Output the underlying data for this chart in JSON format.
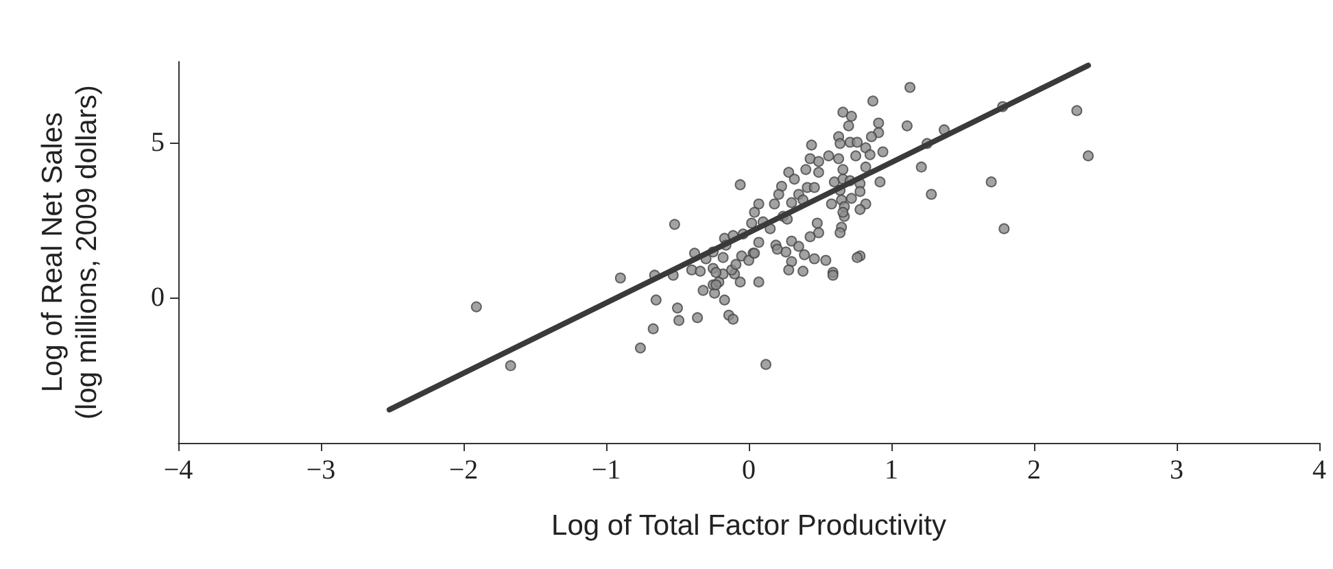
{
  "chart_data": {
    "type": "scatter",
    "xlabel": "Log of Total Factor Productivity",
    "ylabel": "Log of Real Net Sales\n(log millions, 2009 dollars)",
    "xlim": [
      -4,
      4
    ],
    "xticks": [
      {
        "value": -4,
        "label": "−4"
      },
      {
        "value": -3,
        "label": "−3"
      },
      {
        "value": -2,
        "label": "−2"
      },
      {
        "value": -1,
        "label": "−1"
      },
      0,
      1,
      2,
      3,
      4
    ],
    "ylim": [
      -4.7,
      7.6
    ],
    "yticks": [
      0,
      5
    ],
    "marker": "circle",
    "series": [
      {
        "color": "#8c8c8c",
        "x": [
          -1.91,
          -1.67,
          -0.9,
          -0.52,
          -0.65,
          -0.67,
          -0.76,
          -0.66,
          -0.53,
          -0.4,
          -0.38,
          -0.34,
          -0.25,
          -0.24,
          -0.36,
          -0.49,
          -0.5,
          -0.17,
          -0.14,
          -0.11,
          -0.32,
          -0.25,
          1.13,
          0.87,
          0.66,
          0.72,
          0.7,
          0.91,
          0.91,
          0.86,
          1.11,
          1.37,
          1.25,
          1.78,
          0.63,
          0.64,
          0.71,
          0.76,
          0.82,
          0.85,
          0.94,
          0.75,
          0.44,
          0.43,
          0.49,
          0.56,
          0.63,
          0.4,
          0.49,
          0.66,
          0.82,
          1.21,
          0.28,
          0.32,
          0.6,
          0.66,
          0.71,
          0.78,
          0.92,
          0.23,
          -0.06,
          0.41,
          0.46,
          0.21,
          0.35,
          0.64,
          0.78,
          1.28,
          1.7,
          0.07,
          0.18,
          0.3,
          0.38,
          0.58,
          0.65,
          0.72,
          0.82,
          0.04,
          0.24,
          0.67,
          0.67,
          0.78,
          0.02,
          0.1,
          0.15,
          0.27,
          0.48,
          0.49,
          0.65,
          0.64,
          0.43,
          0.19,
          0.3,
          0.35,
          0.26,
          0.39,
          0.46,
          0.54,
          0.78,
          1.79,
          -0.17,
          -0.11,
          -0.04,
          0.07,
          -0.16,
          -0.25,
          -0.3,
          -0.05,
          0.03,
          0.38,
          0.59,
          2.3,
          2.38,
          0.12,
          0.07,
          -0.06,
          -0.21,
          -0.1,
          -0.18,
          -0.12,
          -0.09,
          0.0,
          0.04,
          0.2,
          0.3,
          0.28,
          0.59,
          0.76,
          0.66,
          -0.18,
          -0.23,
          -0.23
        ],
        "values": [
          -0.31,
          -2.21,
          0.62,
          2.35,
          -0.09,
          -1.02,
          -1.64,
          0.71,
          0.71,
          0.88,
          1.42,
          0.84,
          0.93,
          0.13,
          -0.66,
          -0.75,
          -0.35,
          -0.09,
          -0.58,
          -0.71,
          0.22,
          0.4,
          6.77,
          6.33,
          5.97,
          5.84,
          5.53,
          5.62,
          5.31,
          5.18,
          5.53,
          5.4,
          4.96,
          6.15,
          5.18,
          4.96,
          5.0,
          5.0,
          4.82,
          4.6,
          4.69,
          4.56,
          4.91,
          4.47,
          4.38,
          4.56,
          4.47,
          4.12,
          4.03,
          4.12,
          4.2,
          4.2,
          4.03,
          3.81,
          3.72,
          3.81,
          3.76,
          3.67,
          3.72,
          3.58,
          3.63,
          3.54,
          3.54,
          3.32,
          3.32,
          3.45,
          3.41,
          3.32,
          3.72,
          3.01,
          3.01,
          3.05,
          3.14,
          3.01,
          3.14,
          3.19,
          3.01,
          2.74,
          2.61,
          2.92,
          2.61,
          2.83,
          2.39,
          2.43,
          2.21,
          2.52,
          2.39,
          2.08,
          2.26,
          2.08,
          1.95,
          1.68,
          1.81,
          1.64,
          1.46,
          1.37,
          1.24,
          1.19,
          1.33,
          2.21,
          1.9,
          1.99,
          2.04,
          1.77,
          1.68,
          1.46,
          1.24,
          1.33,
          1.42,
          0.84,
          0.8,
          6.02,
          4.56,
          -2.17,
          0.49,
          0.49,
          0.49,
          0.75,
          0.75,
          0.88,
          1.06,
          1.19,
          1.42,
          1.55,
          1.15,
          0.88,
          0.71,
          1.28,
          2.74,
          1.28,
          0.8,
          0.4
        ]
      },
      {
        "type": "line",
        "color": "#3a3a3a",
        "marker": "none",
        "line_style": "solid",
        "x": [
          -2.52,
          2.38
        ],
        "values": [
          -3.63,
          7.48
        ]
      }
    ]
  }
}
